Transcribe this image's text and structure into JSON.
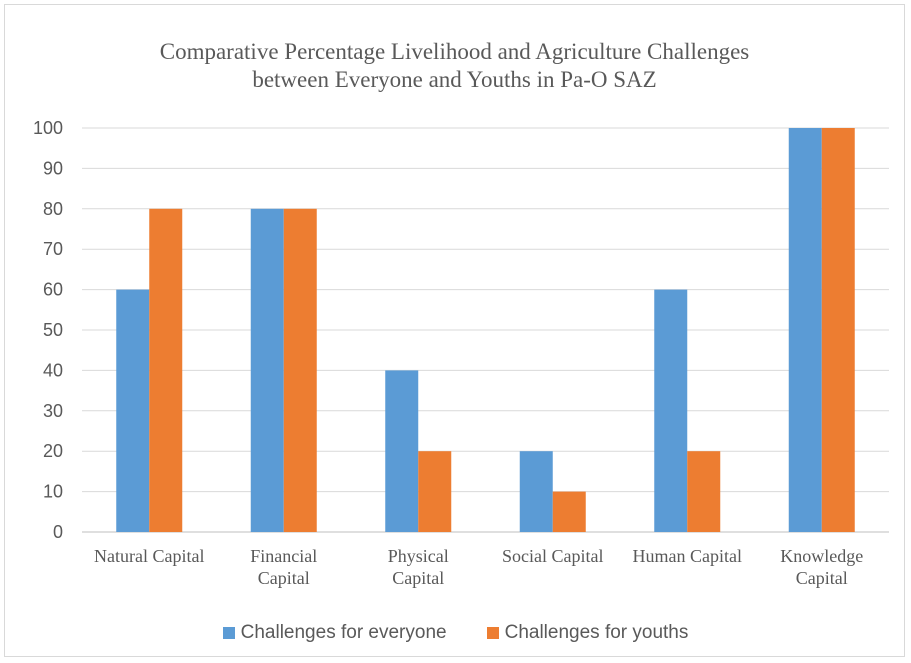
{
  "chart_data": {
    "type": "bar",
    "title": [
      "Comparative Percentage Livelihood and Agriculture Challenges",
      "between Everyone and Youths in Pa-O SAZ"
    ],
    "categories": [
      [
        "Natural Capital"
      ],
      [
        "Financial",
        "Capital"
      ],
      [
        "Physical",
        "Capital"
      ],
      [
        "Social Capital"
      ],
      [
        "Human Capital"
      ],
      [
        "Knowledge",
        "Capital"
      ]
    ],
    "series": [
      {
        "name": "Challenges for everyone",
        "color": "#5b9bd5",
        "values": [
          60,
          80,
          40,
          20,
          60,
          100
        ]
      },
      {
        "name": "Challenges for youths",
        "color": "#ed7d31",
        "values": [
          80,
          80,
          20,
          10,
          20,
          100
        ]
      }
    ],
    "ylim": [
      0,
      100
    ],
    "yticks": [
      0,
      10,
      20,
      30,
      40,
      50,
      60,
      70,
      80,
      90,
      100
    ],
    "grid": true,
    "legend_position": "bottom"
  }
}
